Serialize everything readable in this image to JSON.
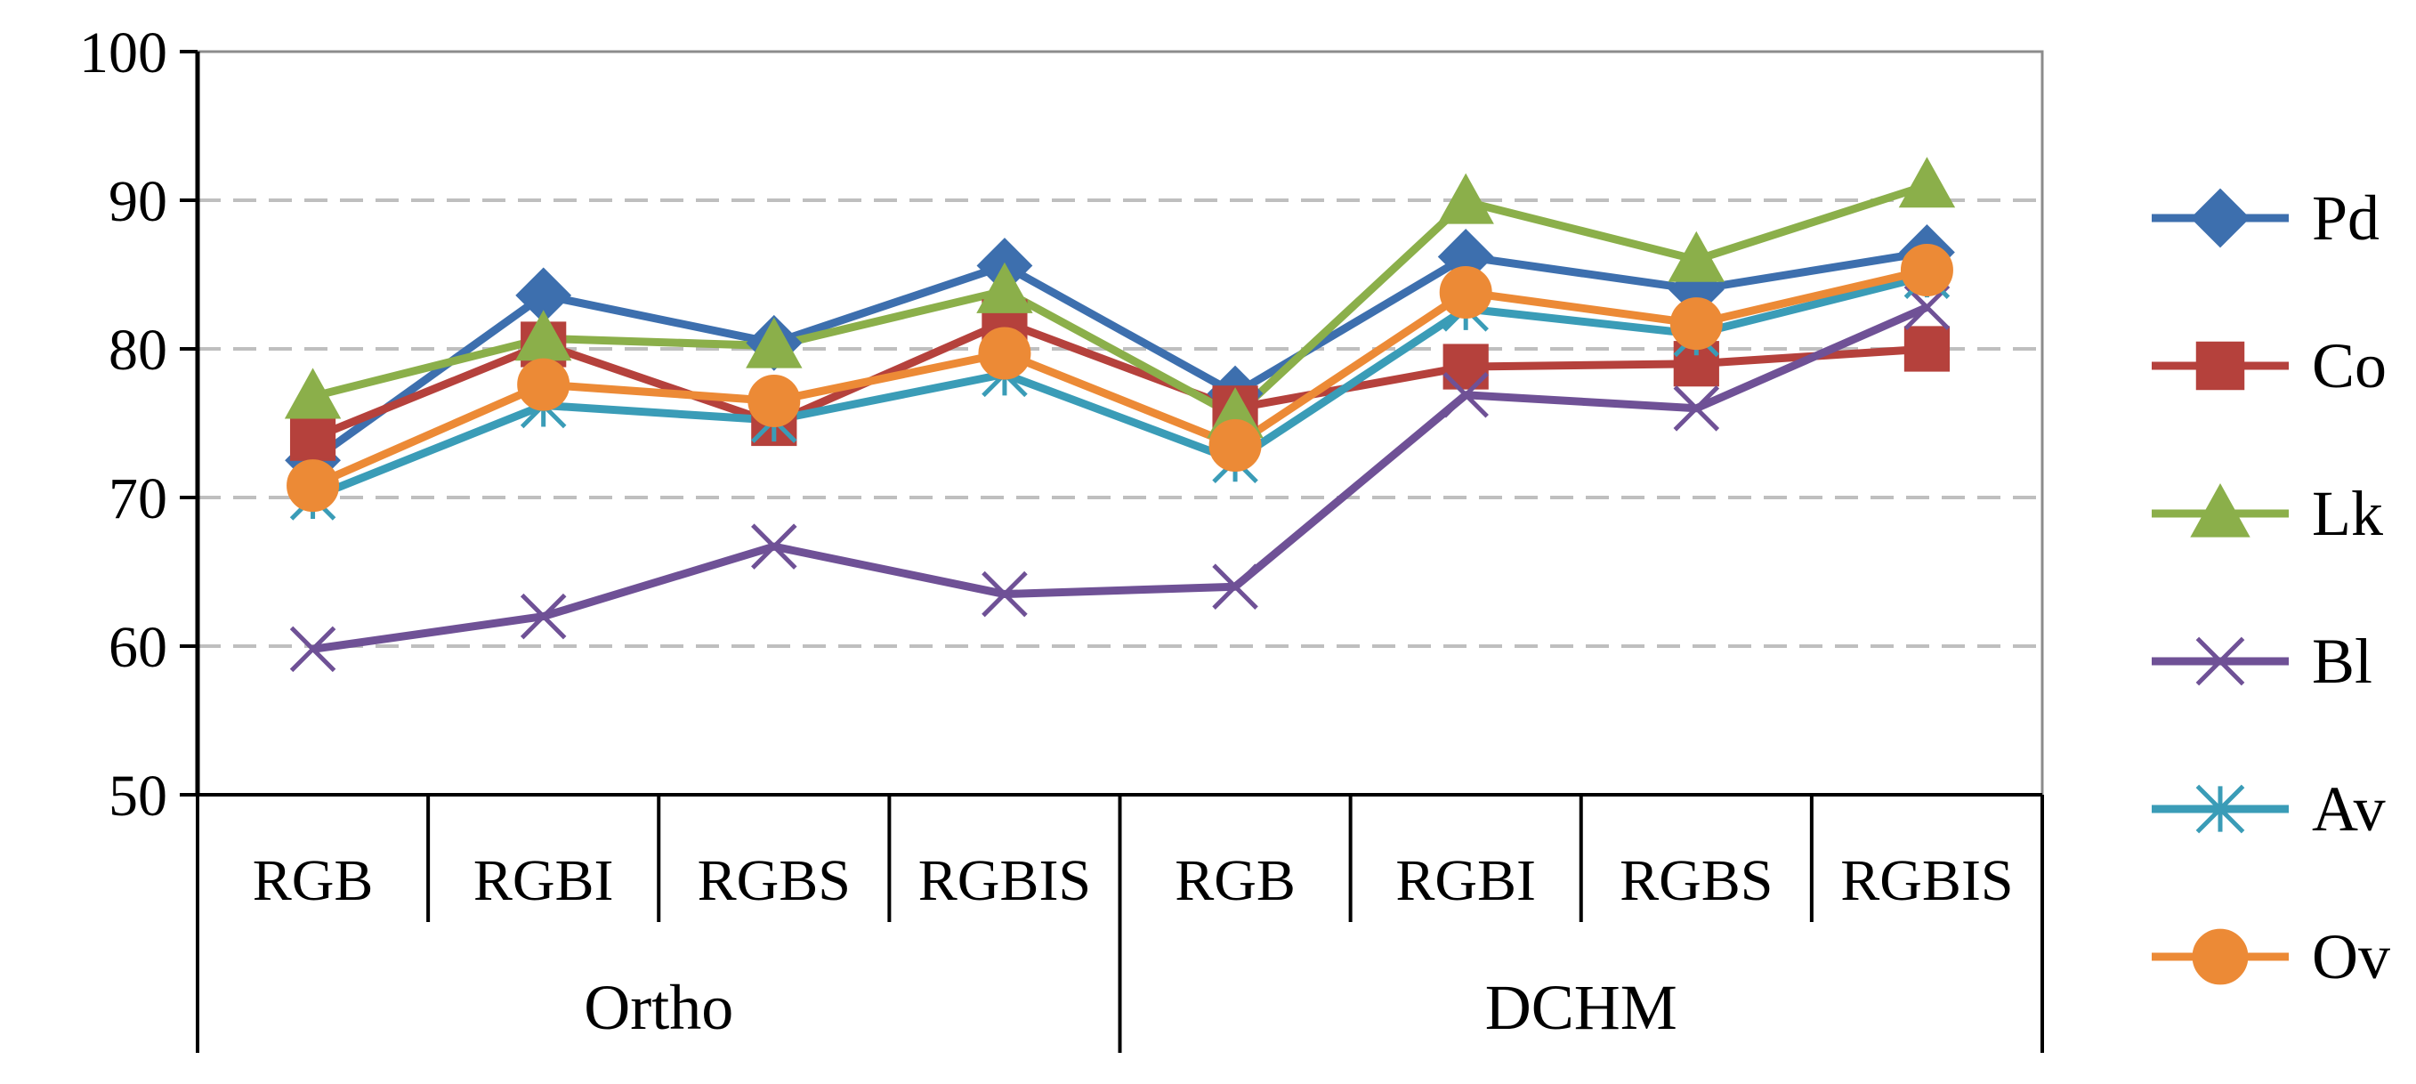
{
  "chart_data": {
    "type": "line",
    "title": "",
    "xlabel": "",
    "ylabel": "",
    "ylim": [
      50,
      100
    ],
    "yticks": [
      "50",
      "60",
      "70",
      "80",
      "90",
      "100"
    ],
    "grid": "horizontal-dashed",
    "legend_position": "right",
    "categories": [
      "RGB",
      "RGBI",
      "RGBS",
      "RGBIS",
      "RGB",
      "RGBI",
      "RGBS",
      "RGBIS"
    ],
    "groups": [
      {
        "label": "Ortho",
        "span": [
          0,
          3
        ]
      },
      {
        "label": "DCHM",
        "span": [
          4,
          7
        ]
      }
    ],
    "series": [
      {
        "name": "Pd",
        "color": "#3D6FAE",
        "marker": "diamond",
        "values": [
          72.5,
          83.6,
          80.4,
          85.6,
          77.0,
          86.2,
          84.0,
          86.5
        ]
      },
      {
        "name": "Co",
        "color": "#B5413C",
        "marker": "square",
        "values": [
          74.0,
          80.3,
          75.0,
          81.8,
          76.0,
          78.8,
          79.0,
          80.0
        ]
      },
      {
        "name": "Lk",
        "color": "#8BAF4A",
        "marker": "triangle",
        "values": [
          76.8,
          80.7,
          80.2,
          83.9,
          75.5,
          89.9,
          86.0,
          91.0
        ]
      },
      {
        "name": "Bl",
        "color": "#6F5196",
        "marker": "x",
        "values": [
          59.8,
          62.0,
          66.7,
          63.5,
          64.0,
          76.9,
          76.0,
          82.8
        ]
      },
      {
        "name": "Av",
        "color": "#3A9CB7",
        "marker": "asterisk",
        "values": [
          70.0,
          76.2,
          75.2,
          78.3,
          72.5,
          82.7,
          81.0,
          84.9
        ]
      },
      {
        "name": "Ov",
        "color": "#EC8A36",
        "marker": "circle",
        "values": [
          70.8,
          77.6,
          76.5,
          79.7,
          73.5,
          83.8,
          81.7,
          85.3
        ]
      }
    ]
  }
}
